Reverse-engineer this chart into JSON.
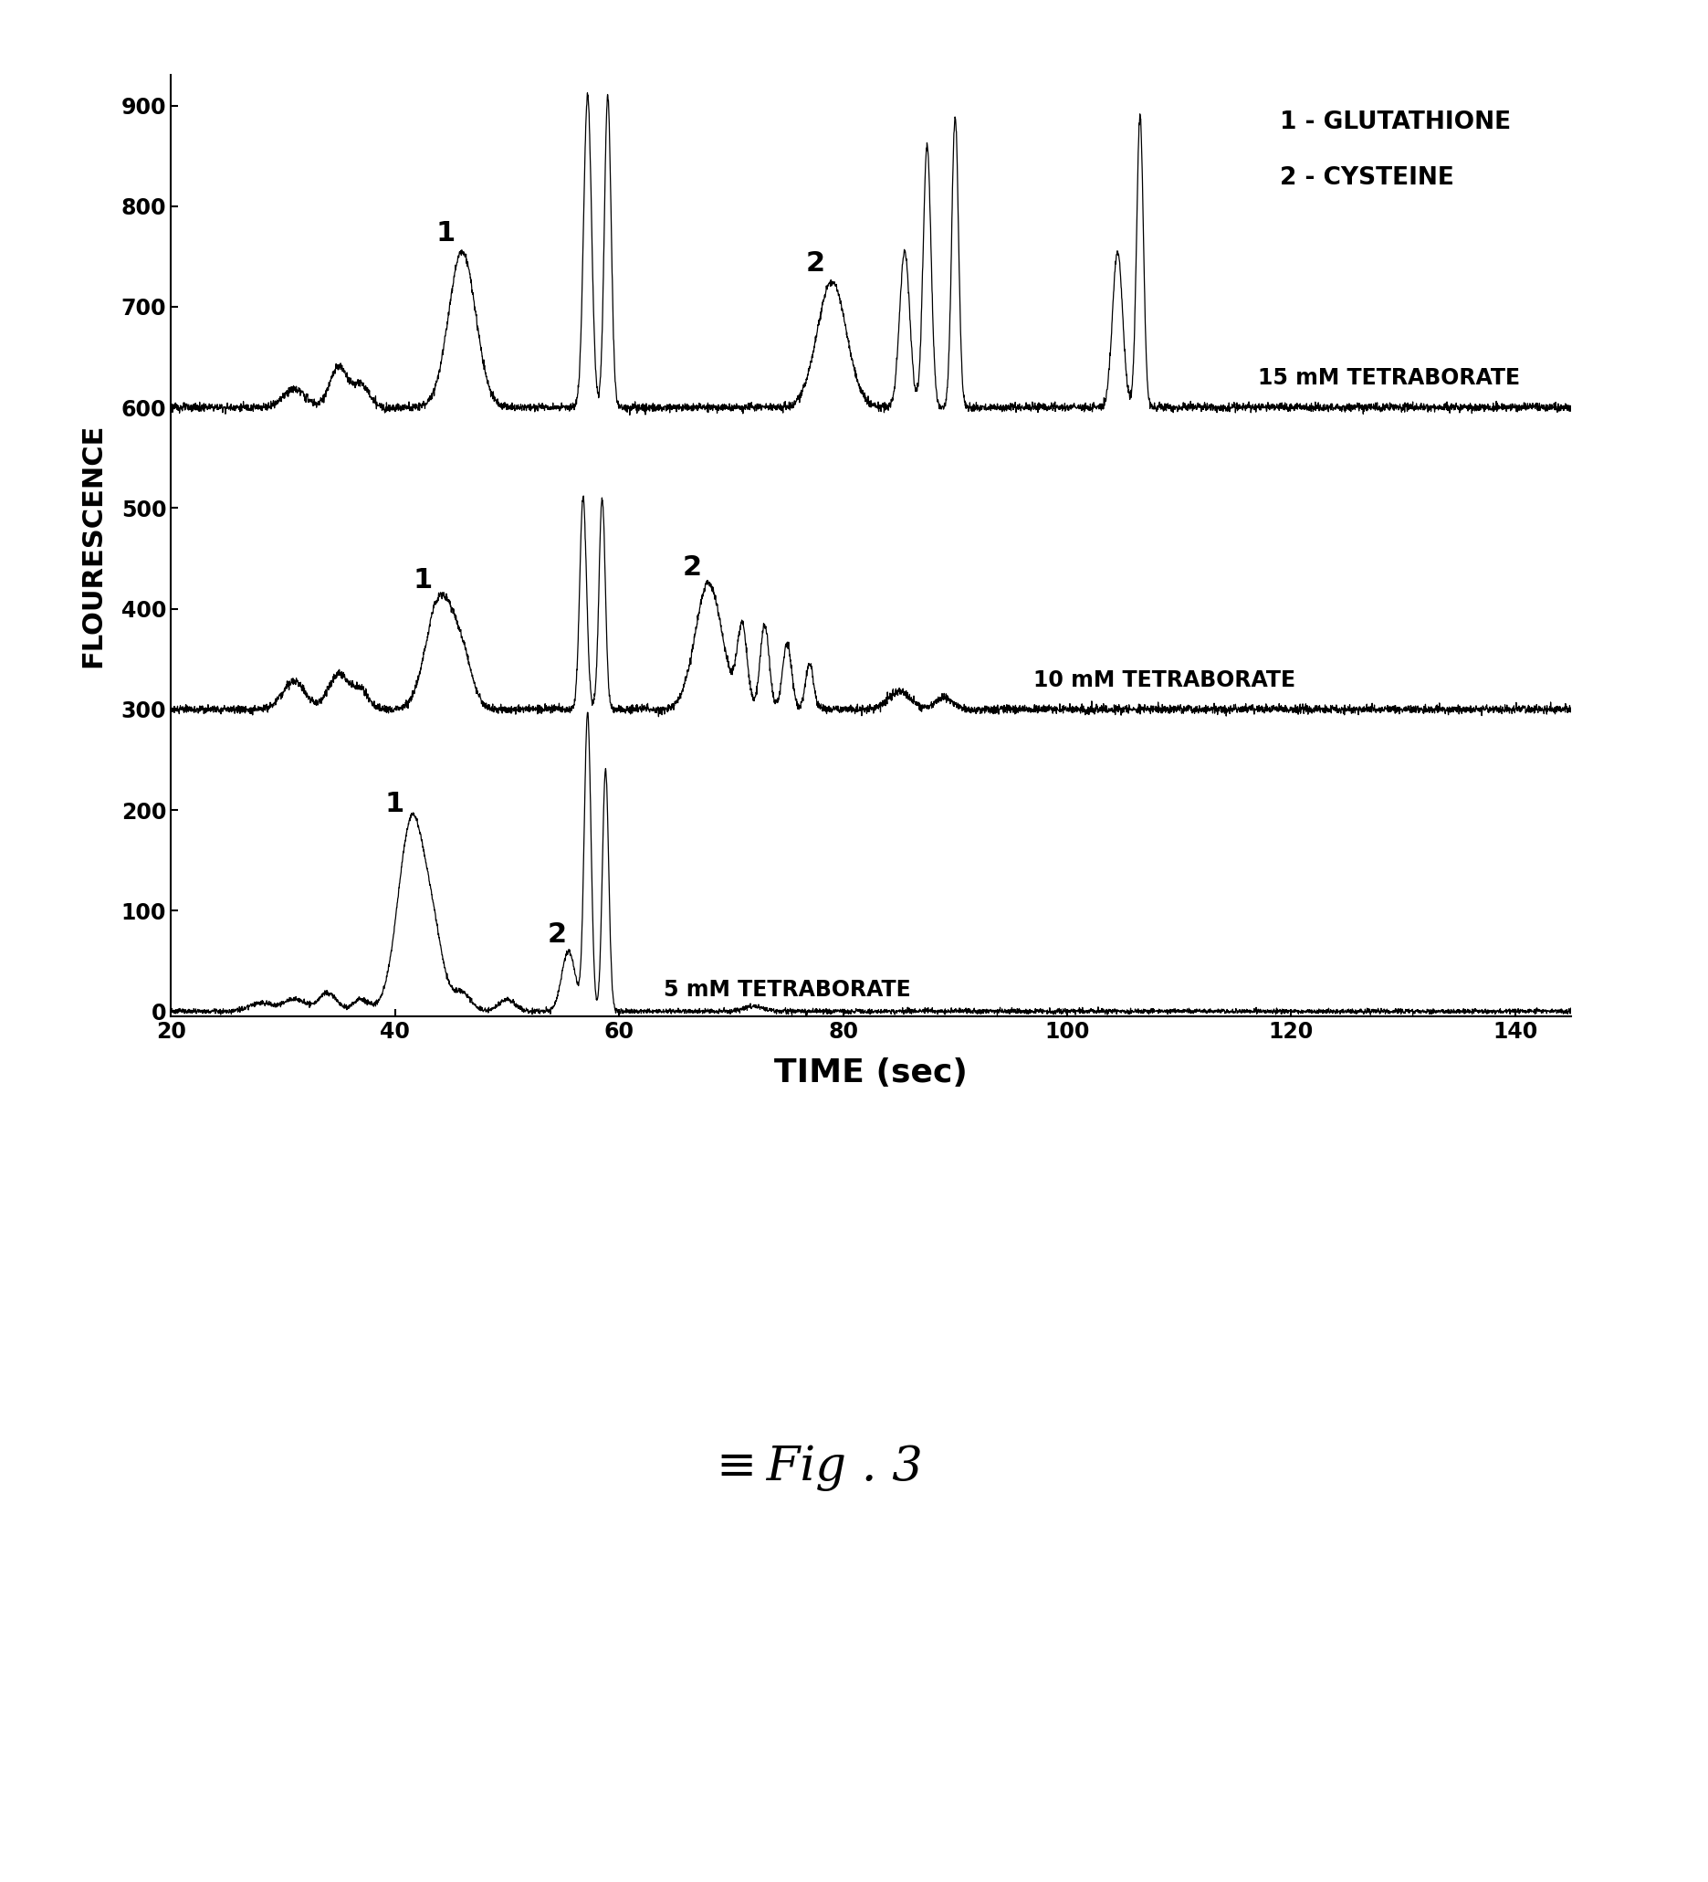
{
  "xlabel": "TIME (sec)",
  "ylabel": "FLOURESCENCE",
  "xlim": [
    20,
    145
  ],
  "ylim": [
    -5,
    930
  ],
  "xticks": [
    20,
    40,
    60,
    80,
    100,
    120,
    140
  ],
  "yticks": [
    0,
    100,
    200,
    300,
    400,
    500,
    600,
    700,
    800,
    900
  ],
  "legend_lines": [
    "1 - GLUTATHIONE",
    "2 - CYSTEINE"
  ],
  "trace_labels": {
    "15mM": "15 mM TETRABORATE",
    "10mM": "10 mM TETRABORATE",
    "5mM": "5 mM TETRABORATE"
  },
  "baselines": {
    "15mM": 600,
    "10mM": 300,
    "5mM": 0
  },
  "line_color": "#000000",
  "background_color": "#ffffff",
  "fig_width": 18.71,
  "fig_height": 20.61
}
